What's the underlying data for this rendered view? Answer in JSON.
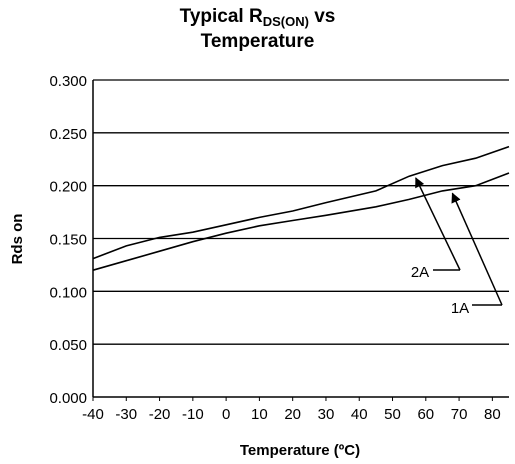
{
  "title": {
    "prefix": "Typical R",
    "subscript": "DS(ON)",
    "suffix": " vs",
    "line2": "Temperature"
  },
  "chart_data": {
    "type": "line",
    "xlabel": "Temperature (ºC)",
    "ylabel": "Rds on",
    "xlim": [
      -40,
      85
    ],
    "ylim": [
      0,
      0.3
    ],
    "x_ticks": [
      -40,
      -30,
      -20,
      -10,
      0,
      10,
      20,
      30,
      40,
      50,
      60,
      70,
      80
    ],
    "y_ticks": [
      0.0,
      0.05,
      0.1,
      0.15,
      0.2,
      0.25,
      0.3
    ],
    "y_tick_labels": [
      "0.000",
      "0.050",
      "0.100",
      "0.150",
      "0.200",
      "0.250",
      "0.300"
    ],
    "grid": "horizontal",
    "series": [
      {
        "name": "2A",
        "x": [
          -40,
          -30,
          -20,
          -10,
          0,
          10,
          20,
          30,
          45,
          55,
          65,
          75,
          85
        ],
        "y": [
          0.131,
          0.143,
          0.151,
          0.156,
          0.163,
          0.17,
          0.176,
          0.184,
          0.195,
          0.209,
          0.219,
          0.226,
          0.237
        ]
      },
      {
        "name": "1A",
        "x": [
          -40,
          -30,
          -20,
          -10,
          0,
          10,
          20,
          30,
          45,
          55,
          65,
          75,
          85
        ],
        "y": [
          0.12,
          0.129,
          0.138,
          0.147,
          0.155,
          0.162,
          0.167,
          0.172,
          0.18,
          0.187,
          0.195,
          0.2,
          0.212
        ]
      }
    ],
    "annotations": [
      {
        "text": "2A",
        "series": "2A",
        "arrow_to_x": 57
      },
      {
        "text": "1A",
        "series": "1A",
        "arrow_to_x": 68
      }
    ]
  }
}
